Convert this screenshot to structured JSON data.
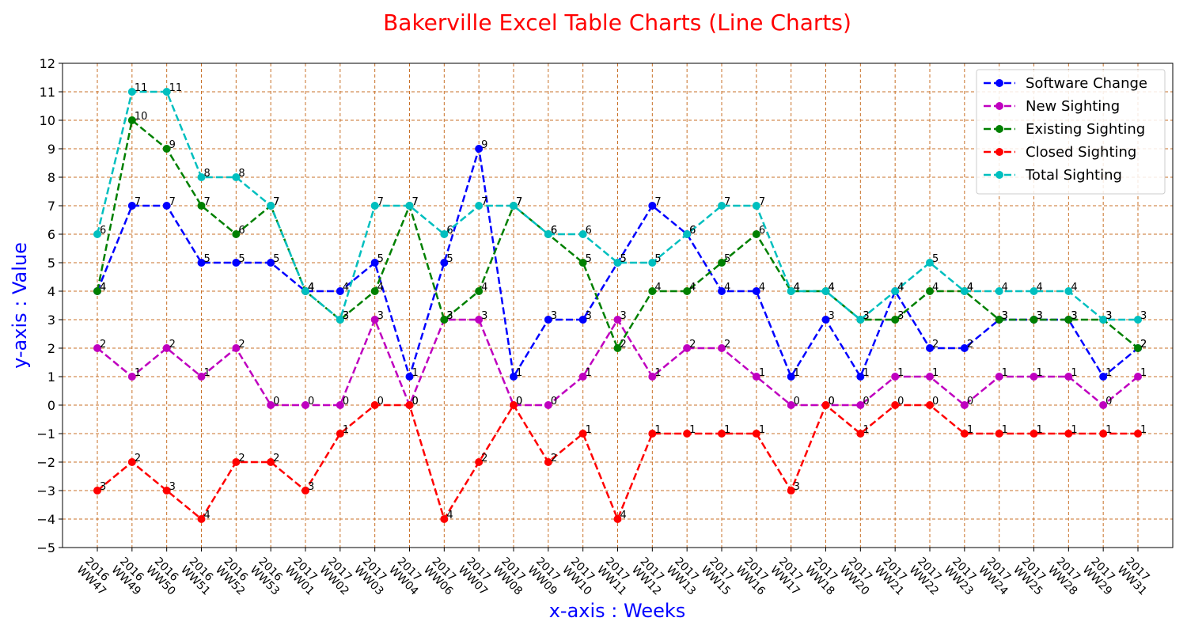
{
  "chart_data": {
    "type": "line",
    "title": "Bakerville Excel Table Charts (Line Charts)",
    "xlabel": "x-axis : Weeks",
    "ylabel": "y-axis : Value",
    "ylim": [
      -5,
      12
    ],
    "yticks": [
      -5,
      -4,
      -3,
      -2,
      -1,
      0,
      1,
      2,
      3,
      4,
      5,
      6,
      7,
      8,
      9,
      10,
      11,
      12
    ],
    "grid": true,
    "grid_color": "#c87028",
    "legend_position": "top-right",
    "categories": [
      "2016 WW47",
      "2016 WW49",
      "2016 WW50",
      "2016 WW51",
      "2016 WW52",
      "2016 WW53",
      "2017 WW01",
      "2017 WW02",
      "2017 WW03",
      "2017 WW04",
      "2017 WW06",
      "2017 WW07",
      "2017 WW08",
      "2017 WW09",
      "2017 WW10",
      "2017 WW11",
      "2017 WW12",
      "2017 WW13",
      "2017 WW15",
      "2017 WW16",
      "2017 WW17",
      "2017 WW18",
      "2017 WW20",
      "2017 WW21",
      "2017 WW22",
      "2017 WW23",
      "2017 WW24",
      "2017 WW25",
      "2017 WW28",
      "2017 WW29",
      "2017 WW31"
    ],
    "series": [
      {
        "name": "Software Change",
        "color": "#0000ff",
        "values": [
          4,
          7,
          7,
          5,
          5,
          5,
          4,
          4,
          5,
          1,
          5,
          9,
          1,
          3,
          3,
          5,
          7,
          6,
          4,
          4,
          1,
          3,
          1,
          4,
          2,
          2,
          3,
          3,
          3,
          1,
          2
        ]
      },
      {
        "name": "New Sighting",
        "color": "#bf00bf",
        "values": [
          2,
          1,
          2,
          1,
          2,
          0,
          0,
          0,
          3,
          0,
          3,
          3,
          0,
          0,
          1,
          3,
          1,
          2,
          2,
          1,
          0,
          0,
          0,
          1,
          1,
          0,
          1,
          1,
          1,
          0,
          1
        ]
      },
      {
        "name": "Existing Sighting",
        "color": "#008000",
        "values": [
          4,
          10,
          9,
          7,
          6,
          7,
          4,
          3,
          4,
          7,
          3,
          4,
          7,
          6,
          5,
          2,
          4,
          4,
          5,
          6,
          4,
          4,
          3,
          3,
          4,
          4,
          3,
          3,
          3,
          3,
          2
        ]
      },
      {
        "name": "Closed Sighting",
        "color": "#ff0000",
        "values": [
          -3,
          -2,
          -3,
          -4,
          -2,
          -2,
          -3,
          -1,
          0,
          0,
          -4,
          -2,
          0,
          -2,
          -1,
          -4,
          -1,
          -1,
          -1,
          -1,
          -3,
          0,
          -1,
          0,
          0,
          -1,
          -1,
          -1,
          -1,
          -1,
          -1
        ]
      },
      {
        "name": "Total Sighting",
        "color": "#00bfbf",
        "values": [
          6,
          11,
          11,
          8,
          8,
          7,
          4,
          3,
          7,
          7,
          6,
          7,
          7,
          6,
          6,
          5,
          5,
          6,
          7,
          7,
          4,
          4,
          3,
          4,
          5,
          4,
          4,
          4,
          4,
          3,
          3
        ]
      }
    ]
  }
}
